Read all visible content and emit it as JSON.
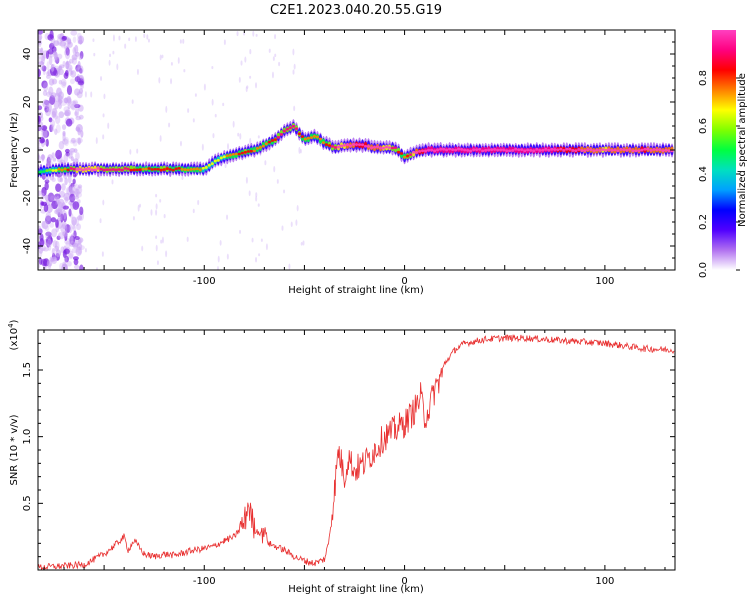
{
  "title": "C2E1.2023.040.20.55.G19",
  "chart_data": [
    {
      "type": "heatmap",
      "xlabel": "Height of straight line (km)",
      "ylabel": "Frequency (Hz)",
      "xlim": [
        -183,
        135
      ],
      "ylim": [
        -50,
        50
      ],
      "xticks": [
        -100,
        0,
        100
      ],
      "yticks": [
        -40,
        -20,
        0,
        20,
        40
      ],
      "colorbar": {
        "label": "Normalized spectral amplitude",
        "range": [
          0,
          1
        ],
        "ticks": [
          "0.0",
          "0.2",
          "0.4",
          "0.6",
          "0.8"
        ],
        "colors": [
          "#ffffff",
          "#b070f0",
          "#5000ff",
          "#0000ff",
          "#00a0ff",
          "#00e0c0",
          "#00ff40",
          "#80ff00",
          "#ffff00",
          "#ff8000",
          "#ff0000",
          "#ff0080",
          "#ff40c0"
        ]
      },
      "ridge": {
        "x": [
          -183,
          -170,
          -160,
          -150,
          -140,
          -130,
          -120,
          -110,
          -100,
          -95,
          -90,
          -85,
          -80,
          -75,
          -70,
          -65,
          -60,
          -55,
          -50,
          -45,
          -40,
          -35,
          -30,
          -25,
          -20,
          -15,
          -10,
          -5,
          0,
          5,
          10,
          20,
          40,
          60,
          80,
          100,
          120,
          135
        ],
        "freq": [
          -9,
          -8,
          -8,
          -8,
          -8,
          -8,
          -8,
          -8,
          -8,
          -5,
          -3,
          -2,
          -1,
          0,
          2,
          4,
          8,
          10,
          4,
          6,
          3,
          1,
          2,
          2,
          2,
          1,
          1,
          1,
          -3,
          -1,
          0,
          0,
          0,
          0,
          0,
          0,
          0,
          0
        ],
        "amplitude": [
          0.3,
          0.5,
          0.7,
          0.6,
          0.6,
          0.5,
          0.55,
          0.5,
          0.45,
          0.4,
          0.45,
          0.5,
          0.55,
          0.5,
          0.5,
          0.55,
          0.6,
          0.6,
          0.5,
          0.5,
          0.5,
          0.6,
          0.7,
          0.8,
          0.8,
          0.75,
          0.7,
          0.6,
          0.5,
          0.7,
          0.9,
          0.95,
          0.95,
          0.95,
          0.85,
          0.7,
          0.8,
          0.7
        ]
      }
    },
    {
      "type": "line",
      "xlabel": "Height of straight line (km)",
      "ylabel": "SNR (10 * v/v)",
      "y_multiplier_label": "(x10",
      "y_multiplier_exp": "4",
      "xlim": [
        -183,
        135
      ],
      "ylim": [
        0,
        18000
      ],
      "xticks": [
        -100,
        0,
        100
      ],
      "ytick_labels": [
        "0.5",
        "1.0",
        "1.5"
      ],
      "yticks": [
        5000,
        10000,
        15000
      ],
      "series": [
        {
          "color": "#e83030",
          "x": [
            -183,
            -170,
            -160,
            -150,
            -145,
            -140,
            -138,
            -135,
            -130,
            -125,
            -120,
            -115,
            -110,
            -105,
            -100,
            -95,
            -90,
            -85,
            -80,
            -78,
            -75,
            -72,
            -70,
            -68,
            -65,
            -60,
            -55,
            -50,
            -45,
            -40,
            -38,
            -35,
            -33,
            -30,
            -28,
            -25,
            -20,
            -15,
            -10,
            -5,
            0,
            5,
            8,
            10,
            12,
            15,
            18,
            20,
            25,
            30,
            40,
            50,
            60,
            70,
            80,
            90,
            100,
            110,
            120,
            135
          ],
          "y": [
            200,
            300,
            400,
            1200,
            1800,
            2500,
            1500,
            2200,
            1200,
            1000,
            1200,
            1100,
            1300,
            1500,
            1600,
            1800,
            2200,
            2500,
            3500,
            5000,
            3000,
            2800,
            3200,
            2000,
            1800,
            1500,
            1000,
            700,
            500,
            800,
            2000,
            6000,
            9000,
            7000,
            8500,
            7500,
            8000,
            9000,
            10000,
            10500,
            11000,
            12000,
            13000,
            11500,
            12000,
            13500,
            14500,
            15500,
            16500,
            17000,
            17300,
            17400,
            17400,
            17300,
            17200,
            17100,
            17000,
            16800,
            16600,
            16500
          ]
        }
      ]
    }
  ]
}
